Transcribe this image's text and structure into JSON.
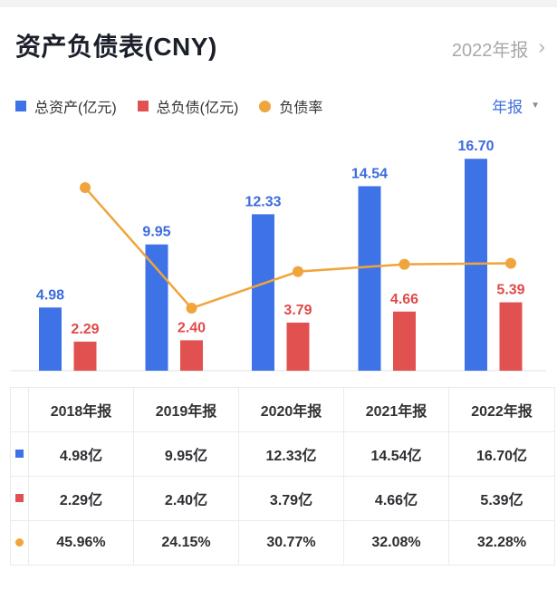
{
  "header": {
    "title": "资产负债表(CNY)",
    "period_label": "2022年报",
    "chevron": "›"
  },
  "legend": {
    "items": [
      {
        "label": "总资产(亿元)",
        "color": "#3e73e8",
        "shape": "square"
      },
      {
        "label": "总负债(亿元)",
        "color": "#e0514f",
        "shape": "square"
      },
      {
        "label": "负债率",
        "color": "#f0a43c",
        "shape": "circle"
      }
    ],
    "dropdown_label": "年报",
    "dropdown_arrow": "▼"
  },
  "chart_data": {
    "type": "bar+line",
    "categories": [
      "2018年报",
      "2019年报",
      "2020年报",
      "2021年报",
      "2022年报"
    ],
    "series": [
      {
        "name": "总资产(亿元)",
        "type": "bar",
        "color": "#3e73e8",
        "label_color": "#3c6bdd",
        "values": [
          4.98,
          9.95,
          12.33,
          14.54,
          16.7
        ]
      },
      {
        "name": "总负债(亿元)",
        "type": "bar",
        "color": "#e0514f",
        "label_color": "#e04a48",
        "values": [
          2.29,
          2.4,
          3.79,
          4.66,
          5.39
        ]
      },
      {
        "name": "负债率",
        "type": "line",
        "color": "#f0a43c",
        "unit": "%",
        "values": [
          45.96,
          24.15,
          30.77,
          32.08,
          32.28
        ]
      }
    ],
    "value_labels_decimals": 2,
    "axis_line_color": "#ececec",
    "x_axis_labels_shown": false,
    "grid": false,
    "legend_position": "top"
  },
  "table": {
    "columns": [
      "2018年报",
      "2019年报",
      "2020年报",
      "2021年报",
      "2022年报"
    ],
    "rows": [
      {
        "series": "总资产",
        "marker": "blue-square-icon",
        "color": "#3e73e8",
        "shape": "square",
        "values": [
          "4.98亿",
          "9.95亿",
          "12.33亿",
          "14.54亿",
          "16.70亿"
        ]
      },
      {
        "series": "总负债",
        "marker": "red-square-icon",
        "color": "#e0514f",
        "shape": "square",
        "values": [
          "2.29亿",
          "2.40亿",
          "3.79亿",
          "4.66亿",
          "5.39亿"
        ]
      },
      {
        "series": "负债率",
        "marker": "orange-circle-icon",
        "color": "#f0a43c",
        "shape": "circle",
        "values": [
          "45.96%",
          "24.15%",
          "30.77%",
          "32.08%",
          "32.28%"
        ]
      }
    ]
  }
}
